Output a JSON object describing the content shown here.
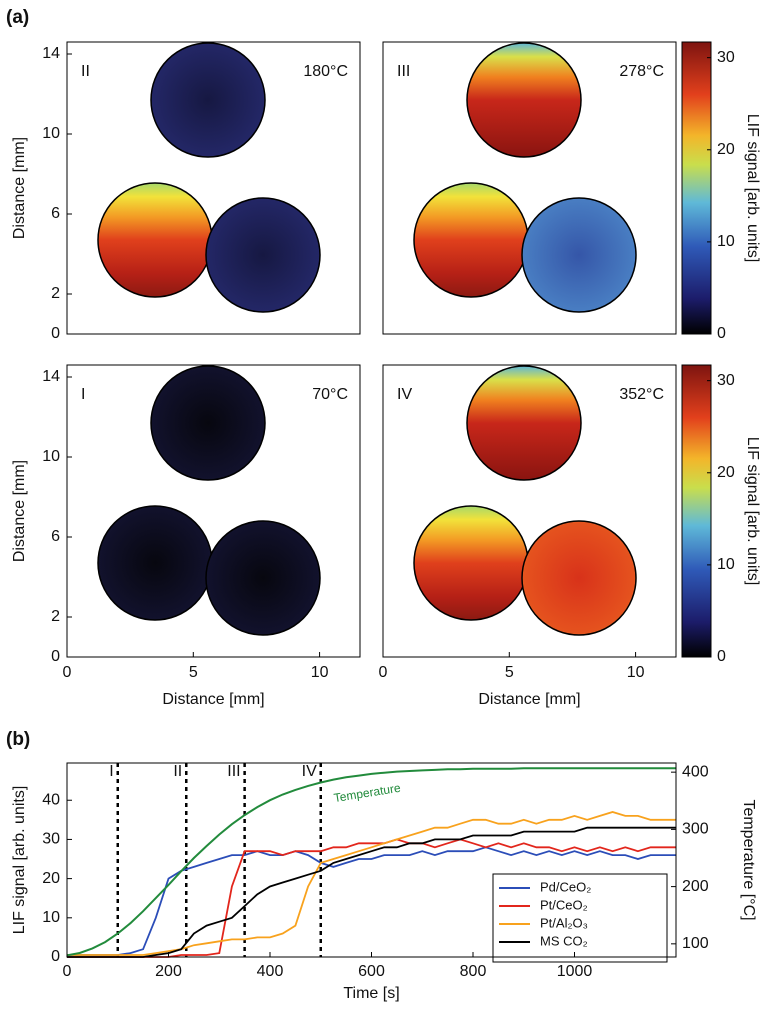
{
  "figure_labels": [
    "(a)",
    "(b)"
  ],
  "chart_data": [
    {
      "type": "image",
      "label": "II",
      "annotation": "180°C",
      "ylabel": "Distance [mm]",
      "ylim": [
        0,
        14.6
      ],
      "yticks": [
        0,
        2,
        6,
        10,
        14
      ],
      "xlim": [
        0,
        11.6
      ]
    },
    {
      "type": "image",
      "label": "III",
      "annotation": "278°C",
      "ylim": [
        0,
        14.6
      ],
      "xlim": [
        0,
        11.6
      ],
      "colorbar": {
        "label": "LIF signal [arb. units]",
        "ylim": [
          0,
          31.7
        ],
        "yticks": [
          0,
          10,
          20,
          30
        ]
      }
    },
    {
      "type": "image",
      "label": "I",
      "annotation": "70°C",
      "ylabel": "Distance [mm]",
      "xlabel": "Distance [mm]",
      "ylim": [
        0,
        14.6
      ],
      "yticks": [
        0,
        2,
        6,
        10,
        14
      ],
      "xlim": [
        0,
        11.6
      ],
      "xticks": [
        0,
        5,
        10
      ]
    },
    {
      "type": "image",
      "label": "IV",
      "annotation": "352°C",
      "xlabel": "Distance [mm]",
      "ylim": [
        0,
        14.6
      ],
      "xlim": [
        0,
        11.6
      ],
      "xticks": [
        0,
        5,
        10
      ],
      "colorbar": {
        "label": "LIF signal [arb. units]",
        "ylim": [
          0,
          31.7
        ],
        "yticks": [
          0,
          10,
          20,
          30
        ]
      }
    },
    {
      "type": "line",
      "xlabel": "Time [s]",
      "ylabel": "LIF signal [arb. units]",
      "y2label": "Temperature [°C]",
      "xlim": [
        0,
        1200
      ],
      "xticks": [
        0,
        200,
        400,
        600,
        800,
        1000
      ],
      "ylim": [
        0,
        49.5
      ],
      "yticks": [
        0,
        10,
        20,
        30,
        40
      ],
      "y2lim": [
        77,
        416
      ],
      "y2ticks": [
        100,
        200,
        300,
        400
      ],
      "markers": [
        {
          "x": 100,
          "label": "I"
        },
        {
          "x": 235,
          "label": "II"
        },
        {
          "x": 350,
          "label": "III"
        },
        {
          "x": 500,
          "label": "IV"
        }
      ],
      "x": [
        0,
        25,
        50,
        75,
        100,
        125,
        150,
        175,
        200,
        225,
        250,
        275,
        300,
        325,
        350,
        375,
        400,
        425,
        450,
        475,
        500,
        525,
        550,
        575,
        600,
        625,
        650,
        675,
        700,
        725,
        750,
        775,
        800,
        825,
        850,
        875,
        900,
        925,
        950,
        975,
        1000,
        1025,
        1050,
        1075,
        1100,
        1125,
        1150,
        1175,
        1200
      ],
      "series": [
        {
          "name": "Pd/CeO₂",
          "color": "#2b4db8",
          "values": [
            0.5,
            0.5,
            0.5,
            0.5,
            0.5,
            1,
            2,
            10,
            20,
            22,
            23,
            24,
            25,
            26,
            26,
            27,
            26,
            26,
            27,
            26,
            24,
            23,
            24,
            25,
            25,
            26,
            26,
            26,
            27,
            26,
            27,
            27,
            27,
            28,
            27,
            26,
            27,
            26,
            27,
            26,
            27,
            26,
            27,
            26,
            26,
            25,
            26,
            26,
            26
          ]
        },
        {
          "name": "Pt/CeO₂",
          "color": "#e2261c",
          "values": [
            0,
            0,
            0,
            0,
            0,
            0,
            0,
            0,
            0,
            0.5,
            0.5,
            0.5,
            1,
            18,
            27,
            27,
            27,
            26,
            27,
            27,
            27,
            28,
            28,
            29,
            29,
            29,
            30,
            29,
            29,
            28,
            29,
            30,
            29,
            28,
            29,
            28,
            29,
            28,
            28,
            27,
            28,
            27,
            28,
            27,
            28,
            27,
            28,
            28,
            28
          ]
        },
        {
          "name": "Pt/Al₂O₃",
          "color": "#f8a21d",
          "values": [
            0.5,
            0.5,
            0.5,
            0.5,
            0.5,
            0.5,
            0.5,
            1,
            1.5,
            2,
            3,
            3.5,
            4,
            4.5,
            4.5,
            5,
            5,
            6,
            8,
            18,
            24,
            25,
            26,
            27,
            28,
            29,
            30,
            31,
            32,
            33,
            33,
            34,
            35,
            35,
            34,
            34,
            35,
            34,
            35,
            35,
            36,
            35,
            36,
            37,
            36,
            36,
            35,
            35,
            35
          ]
        },
        {
          "name": "MS CO₂",
          "color": "#000000",
          "values": [
            0,
            0,
            0,
            0,
            0,
            0,
            0,
            0.5,
            1,
            2,
            6,
            8,
            9,
            10,
            13,
            16,
            18,
            19,
            20,
            21,
            22,
            24,
            25,
            26,
            27,
            28,
            28,
            29,
            29,
            30,
            30,
            30,
            31,
            31,
            31,
            31,
            32,
            32,
            32,
            32,
            32,
            33,
            33,
            33,
            33,
            33,
            33,
            33,
            33
          ]
        },
        {
          "name": "Temperature",
          "color": "#228b3c",
          "axis": "y2",
          "values": [
            80,
            84,
            92,
            103,
            118,
            136,
            157,
            180,
            203,
            227,
            250,
            271,
            291,
            309,
            325,
            339,
            351,
            361,
            369,
            376,
            382,
            387,
            391,
            394,
            397,
            399,
            401,
            402,
            403,
            404,
            405,
            405,
            406,
            406,
            406,
            406,
            407,
            407,
            407,
            407,
            407,
            407,
            407,
            407,
            407,
            407,
            407,
            407,
            407
          ]
        }
      ]
    }
  ]
}
